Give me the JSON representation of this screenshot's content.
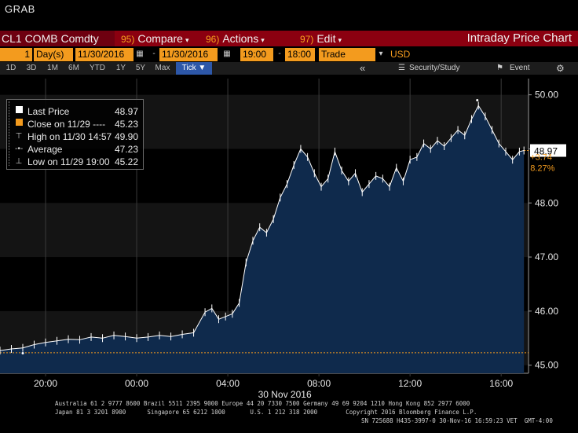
{
  "window_title": "GRAB",
  "toolbar": {
    "ticker": "CL1 COMB Comdty",
    "compare_num": "95)",
    "compare_label": "Compare",
    "actions_num": "96)",
    "actions_label": "Actions",
    "edit_num": "97)",
    "edit_label": "Edit",
    "chart_title": "Intraday Price Chart"
  },
  "params": {
    "period_count": "1",
    "period_unit": "Day(s)",
    "start_date": "11/30/2016",
    "end_date": "11/30/2016",
    "start_time": "19:00",
    "end_time": "18:00",
    "event_type": "Trade",
    "currency": "USD"
  },
  "timeframes": [
    "1D",
    "3D",
    "1M",
    "6M",
    "YTD",
    "1Y",
    "5Y",
    "Max"
  ],
  "tick_label": "Tick ▼",
  "right_tools": {
    "collapse": "«",
    "security_study": "Security/Study",
    "event": "Event"
  },
  "legend": {
    "last_label": "Last Price",
    "last_value": "48.97",
    "close_label": "Close on 11/29 ----",
    "close_value": "45.23",
    "high_label": "High on 11/30 14:57",
    "high_value": "49.90",
    "avg_label": "Average",
    "avg_value": "47.23",
    "low_label": "Low on 11/29 19:00",
    "low_value": "45.22"
  },
  "change": {
    "abs": "+3.74",
    "pct": "8.27%"
  },
  "last_tag": "48.97",
  "date_caption": "30 Nov 2016",
  "footer_lines": [
    "Australia 61 2 9777 8600 Brazil 5511 2395 9000 Europe 44 20 7330 7500 Germany 49 69 9204 1210 Hong Kong 852 2977 6000",
    "Japan 81 3 3201 8900      Singapore 65 6212 1000       U.S. 1 212 318 2000        Copyright 2016 Bloomberg Finance L.P."
  ],
  "footer_sn": "SN 725688 H435-3997-0 30-Nov-16 16:59:23 VET  GMT-4:00",
  "colors": {
    "accent": "#f39b1e",
    "header_red": "#8b0010",
    "area_fill": "#0f2a4c",
    "line": "#ffffff"
  },
  "chart_data": {
    "type": "line",
    "title": "",
    "xlabel": "",
    "ylabel": "",
    "x_ticks": [
      "20:00",
      "00:00",
      "04:00",
      "08:00",
      "12:00",
      "16:00"
    ],
    "y_ticks": [
      "45.00",
      "46.00",
      "47.00",
      "48.00",
      "49.00",
      "50.00"
    ],
    "ylim": [
      44.85,
      50.3
    ],
    "xlim_hours": [
      18.0,
      41.2
    ],
    "x_tick_hours": [
      20,
      24,
      28,
      32,
      36,
      40
    ],
    "reference_line": {
      "label": "Close on 11/29",
      "value": 45.23
    },
    "series": [
      {
        "name": "Last Price",
        "x_hours": [
          18.0,
          18.5,
          19.0,
          19.5,
          20.0,
          20.5,
          21.0,
          21.5,
          22.0,
          22.5,
          23.0,
          23.5,
          24.0,
          24.5,
          25.0,
          25.5,
          26.0,
          26.5,
          27.0,
          27.3,
          27.6,
          27.9,
          28.2,
          28.5,
          28.8,
          29.1,
          29.4,
          29.7,
          30.0,
          30.3,
          30.6,
          30.9,
          31.2,
          31.5,
          31.8,
          32.1,
          32.4,
          32.7,
          33.0,
          33.3,
          33.6,
          33.9,
          34.2,
          34.5,
          34.8,
          35.1,
          35.4,
          35.7,
          36.0,
          36.3,
          36.6,
          36.9,
          37.2,
          37.5,
          37.8,
          38.1,
          38.4,
          38.7,
          39.0,
          39.3,
          39.6,
          39.9,
          40.2,
          40.5,
          40.8,
          41.0
        ],
        "values": [
          45.27,
          45.3,
          45.32,
          45.38,
          45.42,
          45.45,
          45.48,
          45.47,
          45.52,
          45.5,
          45.55,
          45.53,
          45.5,
          45.52,
          45.55,
          45.53,
          45.57,
          45.6,
          45.98,
          46.05,
          45.85,
          45.9,
          45.95,
          46.15,
          46.9,
          47.3,
          47.55,
          47.45,
          47.7,
          48.1,
          48.35,
          48.7,
          49.0,
          48.85,
          48.55,
          48.3,
          48.45,
          48.95,
          48.6,
          48.4,
          48.55,
          48.2,
          48.35,
          48.5,
          48.45,
          48.3,
          48.65,
          48.4,
          48.8,
          48.85,
          49.1,
          49.0,
          49.15,
          49.05,
          49.2,
          49.35,
          49.25,
          49.55,
          49.8,
          49.6,
          49.35,
          49.1,
          48.95,
          48.8,
          48.95,
          48.97
        ]
      },
      {
        "name": "High on 11/30 14:57",
        "x_hours": [
          38.95
        ],
        "values": [
          49.9
        ]
      },
      {
        "name": "Low on 11/29 19:00",
        "x_hours": [
          19.0
        ],
        "values": [
          45.22
        ]
      }
    ]
  }
}
